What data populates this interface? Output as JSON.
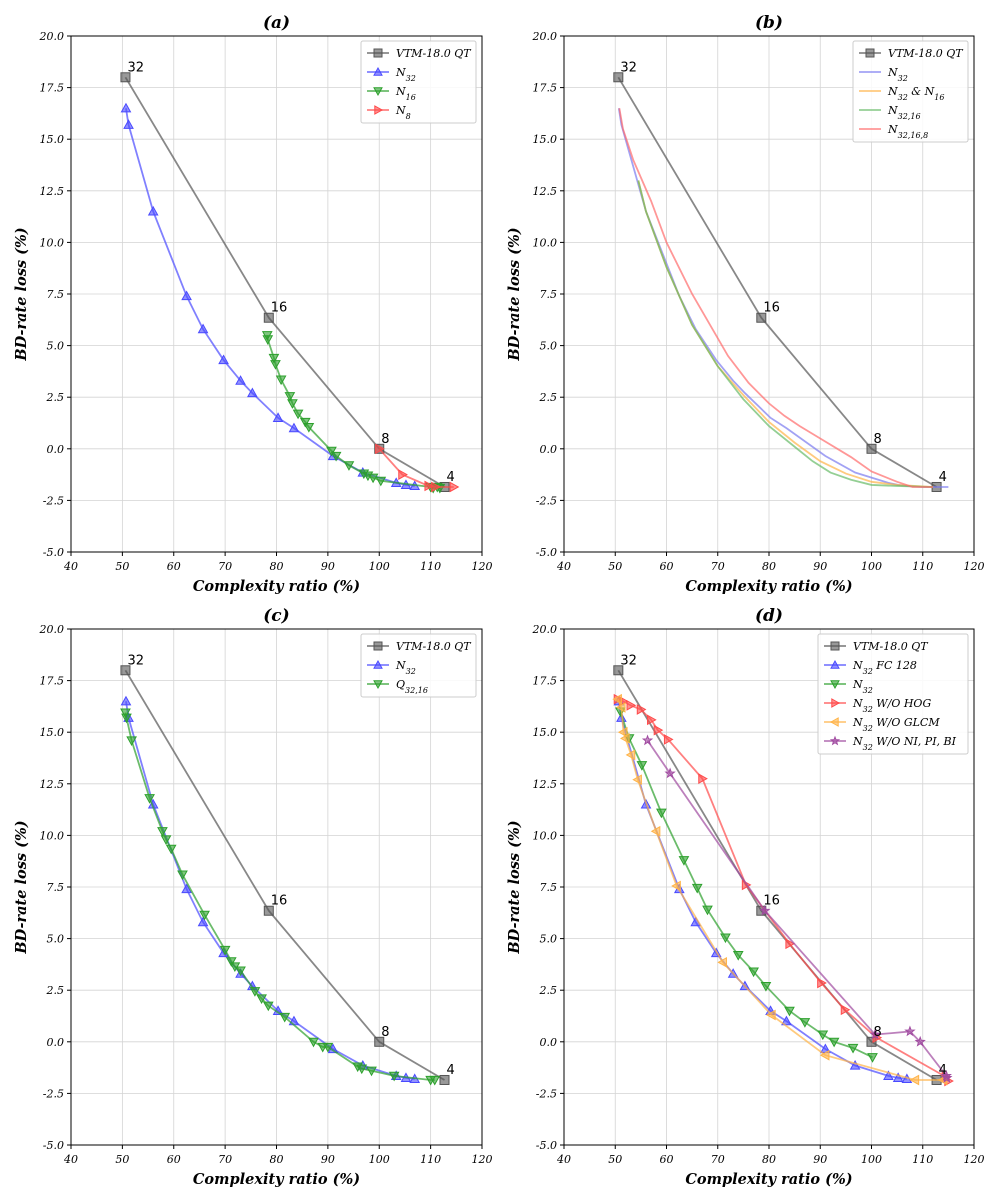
{
  "chart_data": [
    {
      "type": "line",
      "panel": "(a)",
      "title": "(a)",
      "xlabel": "Complexity ratio (%)",
      "ylabel": "BD-rate loss (%)",
      "xlim": [
        40,
        120
      ],
      "ylim": [
        -5.0,
        20.0
      ],
      "xticks": [
        "40",
        "50",
        "60",
        "70",
        "80",
        "90",
        "100",
        "110",
        "120"
      ],
      "yticks": [
        "-5.0",
        "-2.5",
        "0.0",
        "2.5",
        "5.0",
        "7.5",
        "10.0",
        "12.5",
        "15.0",
        "17.5",
        "20.0"
      ],
      "legend": "top-right",
      "series": [
        {
          "name": "VTM-18.0 QT",
          "color": "#555555",
          "marker": "square",
          "line": true,
          "mark_all": true,
          "x": [
            50.6,
            78.5,
            100.0,
            112.7
          ],
          "y": [
            18.0,
            6.35,
            0.0,
            -1.85
          ]
        },
        {
          "name": "N32",
          "sub": "32",
          "color": "#4a4aff",
          "marker": "triangle-up",
          "line": true,
          "mark_all": true,
          "x": [
            50.7,
            51.2,
            56.0,
            62.5,
            65.7,
            69.7,
            73.0,
            75.3,
            80.3,
            83.4,
            91.0,
            96.8,
            103.3,
            105.2,
            106.9
          ],
          "y": [
            16.5,
            15.7,
            11.5,
            7.4,
            5.8,
            4.3,
            3.3,
            2.7,
            1.5,
            1.0,
            -0.35,
            -1.15,
            -1.65,
            -1.75,
            -1.8
          ]
        },
        {
          "name": "N16",
          "sub": "16",
          "color": "#2ca02c",
          "marker": "triangle-down",
          "line": true,
          "mark_all": true,
          "x": [
            78.2,
            78.3,
            79.5,
            79.8,
            80.9,
            82.6,
            83.1,
            84.2,
            85.6,
            86.3,
            90.7,
            91.6,
            94.1,
            97.0,
            97.8,
            98.8,
            100.3,
            110.0,
            110.5,
            111.3,
            111.8
          ],
          "y": [
            5.5,
            5.3,
            4.4,
            4.1,
            3.35,
            2.55,
            2.2,
            1.7,
            1.3,
            1.05,
            -0.1,
            -0.35,
            -0.8,
            -1.2,
            -1.3,
            -1.4,
            -1.55,
            -1.85,
            -1.9,
            -1.85,
            -1.9
          ]
        },
        {
          "name": "N8",
          "sub": "8",
          "color": "#ff4a4a",
          "marker": "triangle-right",
          "line": true,
          "mark_all": true,
          "x": [
            100.0,
            104.5,
            109.6,
            110.9,
            114.5
          ],
          "y": [
            0.0,
            -1.25,
            -1.8,
            -1.85,
            -1.85
          ]
        }
      ],
      "annotations": [
        {
          "text": "32",
          "x": 50.6,
          "y": 18.0
        },
        {
          "text": "16",
          "x": 78.5,
          "y": 6.35
        },
        {
          "text": "8",
          "x": 100.0,
          "y": 0.0
        },
        {
          "text": "4",
          "x": 112.7,
          "y": -1.85
        }
      ]
    },
    {
      "type": "line",
      "panel": "(b)",
      "title": "(b)",
      "xlabel": "Complexity ratio (%)",
      "ylabel": "BD-rate loss (%)",
      "xlim": [
        40,
        120
      ],
      "ylim": [
        -5.0,
        20.0
      ],
      "xticks": [
        "40",
        "50",
        "60",
        "70",
        "80",
        "90",
        "100",
        "110",
        "120"
      ],
      "yticks": [
        "-5.0",
        "-2.5",
        "0.0",
        "2.5",
        "5.0",
        "7.5",
        "10.0",
        "12.5",
        "15.0",
        "17.5",
        "20.0"
      ],
      "legend": "top-right",
      "series": [
        {
          "name": "VTM-18.0 QT",
          "color": "#555555",
          "marker": "square",
          "line": true,
          "mark_all": true,
          "x": [
            50.6,
            78.5,
            100.0,
            112.7
          ],
          "y": [
            18.0,
            6.35,
            0.0,
            -1.85
          ]
        },
        {
          "name": "N32",
          "sub": "32",
          "color": "#7b7bf0",
          "marker": "none",
          "line": true,
          "x": [
            50.7,
            51.2,
            56.0,
            62.5,
            65.7,
            69.7,
            73.0,
            75.3,
            80.3,
            83.4,
            91.0,
            96.8,
            103.3,
            105.2,
            106.9,
            110.0,
            113.0,
            115.0
          ],
          "y": [
            16.5,
            15.7,
            11.5,
            7.4,
            5.8,
            4.3,
            3.3,
            2.7,
            1.5,
            1.0,
            -0.35,
            -1.15,
            -1.65,
            -1.75,
            -1.8,
            -1.85,
            -1.85,
            -1.85
          ]
        },
        {
          "name": "N32 & N16",
          "sub": "32",
          "sub2": "16",
          "color": "#ffb347",
          "marker": "none",
          "line": true,
          "x": [
            54.5,
            56.0,
            60.0,
            65.0,
            70.0,
            75.0,
            80.0,
            85.0,
            90.0,
            95.0,
            100.0,
            105.0,
            112.0
          ],
          "y": [
            13.0,
            11.5,
            8.8,
            6.0,
            4.0,
            2.6,
            1.3,
            0.3,
            -0.6,
            -1.2,
            -1.6,
            -1.75,
            -1.85
          ]
        },
        {
          "name": "N32,16",
          "sub": "32,16",
          "color": "#66bb66",
          "marker": "none",
          "line": true,
          "x": [
            54.5,
            56.0,
            60.0,
            65.0,
            70.0,
            75.0,
            80.0,
            85.0,
            88.5,
            92.0,
            96.0,
            100.0,
            105.0,
            112.0
          ],
          "y": [
            13.0,
            11.5,
            8.8,
            6.0,
            4.0,
            2.4,
            1.1,
            0.1,
            -0.6,
            -1.15,
            -1.5,
            -1.75,
            -1.8,
            -1.85
          ]
        },
        {
          "name": "N32,16,8",
          "sub": "32,16,8",
          "color": "#ff6b6b",
          "marker": "none",
          "line": true,
          "x": [
            50.8,
            51.5,
            53.5,
            57.0,
            60.0,
            65.0,
            72.0,
            76.0,
            80.0,
            83.0,
            86.0,
            90.0,
            96.0,
            100.0,
            105.0,
            108.0,
            112.0
          ],
          "y": [
            16.5,
            15.5,
            14.0,
            12.0,
            10.0,
            7.5,
            4.5,
            3.2,
            2.2,
            1.6,
            1.1,
            0.5,
            -0.4,
            -1.1,
            -1.6,
            -1.85,
            -1.85
          ]
        }
      ],
      "annotations": [
        {
          "text": "32",
          "x": 50.6,
          "y": 18.0
        },
        {
          "text": "16",
          "x": 78.5,
          "y": 6.35
        },
        {
          "text": "8",
          "x": 100.0,
          "y": 0.0
        },
        {
          "text": "4",
          "x": 112.7,
          "y": -1.85
        }
      ]
    },
    {
      "type": "line",
      "panel": "(c)",
      "title": "(c)",
      "xlabel": "Complexity ratio (%)",
      "ylabel": "BD-rate loss (%)",
      "xlim": [
        40,
        120
      ],
      "ylim": [
        -5.0,
        20.0
      ],
      "xticks": [
        "40",
        "50",
        "60",
        "70",
        "80",
        "90",
        "100",
        "110",
        "120"
      ],
      "yticks": [
        "-5.0",
        "-2.5",
        "0.0",
        "2.5",
        "5.0",
        "7.5",
        "10.0",
        "12.5",
        "15.0",
        "17.5",
        "20.0"
      ],
      "legend": "top-right",
      "series": [
        {
          "name": "VTM-18.0 QT",
          "color": "#555555",
          "marker": "square",
          "line": true,
          "mark_all": true,
          "x": [
            50.6,
            78.5,
            100.0,
            112.7
          ],
          "y": [
            18.0,
            6.35,
            0.0,
            -1.85
          ]
        },
        {
          "name": "N32",
          "sub": "32",
          "color": "#4a4aff",
          "marker": "triangle-up",
          "line": true,
          "mark_all": true,
          "x": [
            50.7,
            51.2,
            56.0,
            62.5,
            65.7,
            69.7,
            73.0,
            75.3,
            80.3,
            83.4,
            91.0,
            96.8,
            103.3,
            105.2,
            106.9
          ],
          "y": [
            16.5,
            15.7,
            11.5,
            7.4,
            5.8,
            4.3,
            3.3,
            2.7,
            1.5,
            1.0,
            -0.35,
            -1.15,
            -1.65,
            -1.75,
            -1.8
          ]
        },
        {
          "name": "Q32,16",
          "sub": "32,16",
          "prefix": "Q",
          "color": "#2ca02c",
          "marker": "triangle-down",
          "line": true,
          "mark_all": true,
          "x": [
            50.6,
            50.8,
            51.8,
            55.3,
            57.8,
            58.5,
            59.5,
            61.7,
            66.0,
            70.0,
            71.2,
            71.9,
            73.0,
            75.8,
            77.1,
            78.4,
            81.6,
            87.2,
            89.0,
            90.0,
            95.8,
            96.6,
            98.5,
            102.9,
            110.0,
            110.8
          ],
          "y": [
            15.95,
            15.7,
            14.6,
            11.8,
            10.2,
            9.8,
            9.35,
            8.1,
            6.15,
            4.45,
            3.9,
            3.65,
            3.45,
            2.45,
            2.1,
            1.75,
            1.2,
            0.0,
            -0.25,
            -0.25,
            -1.2,
            -1.3,
            -1.4,
            -1.65,
            -1.85,
            -1.85
          ]
        }
      ],
      "annotations": [
        {
          "text": "32",
          "x": 50.6,
          "y": 18.0
        },
        {
          "text": "16",
          "x": 78.5,
          "y": 6.35
        },
        {
          "text": "8",
          "x": 100.0,
          "y": 0.0
        },
        {
          "text": "4",
          "x": 112.7,
          "y": -1.85
        }
      ]
    },
    {
      "type": "line",
      "panel": "(d)",
      "title": "(d)",
      "xlabel": "Complexity ratio (%)",
      "ylabel": "BD-rate loss (%)",
      "xlim": [
        40,
        120
      ],
      "ylim": [
        -5.0,
        20.0
      ],
      "xticks": [
        "40",
        "50",
        "60",
        "70",
        "80",
        "90",
        "100",
        "110",
        "120"
      ],
      "yticks": [
        "-5.0",
        "-2.5",
        "0.0",
        "2.5",
        "5.0",
        "7.5",
        "10.0",
        "12.5",
        "15.0",
        "17.5",
        "20.0"
      ],
      "legend": "top-right",
      "series": [
        {
          "name": "VTM-18.0 QT",
          "color": "#555555",
          "marker": "square",
          "line": true,
          "mark_all": true,
          "x": [
            50.6,
            78.5,
            100.0,
            112.7
          ],
          "y": [
            18.0,
            6.35,
            0.0,
            -1.85
          ]
        },
        {
          "name": "N32 FC 128",
          "sub": "32",
          "suffix": " FC 128",
          "color": "#4a4aff",
          "marker": "triangle-up",
          "line": true,
          "mark_all": true,
          "x": [
            50.7,
            51.2,
            56.0,
            62.5,
            65.7,
            69.7,
            73.0,
            75.3,
            80.3,
            83.4,
            91.0,
            96.8,
            103.3,
            105.2,
            106.9
          ],
          "y": [
            16.5,
            15.7,
            11.5,
            7.4,
            5.8,
            4.3,
            3.3,
            2.7,
            1.5,
            1.0,
            -0.35,
            -1.15,
            -1.65,
            -1.75,
            -1.8
          ]
        },
        {
          "name": "N32",
          "sub": "32",
          "color": "#2ca02c",
          "marker": "triangle-down",
          "line": true,
          "mark_all": true,
          "x": [
            51.0,
            52.7,
            55.2,
            59.0,
            63.4,
            66.0,
            68.0,
            71.5,
            74.0,
            77.0,
            79.4,
            84.0,
            87.0,
            90.5,
            92.7,
            96.4,
            100.2
          ],
          "y": [
            16.0,
            14.7,
            13.4,
            11.1,
            8.8,
            7.45,
            6.4,
            5.05,
            4.2,
            3.4,
            2.7,
            1.5,
            0.95,
            0.35,
            0.0,
            -0.3,
            -0.75
          ]
        },
        {
          "name": "N32 W/O HOG",
          "sub": "32",
          "suffix": " W/O HOG",
          "color": "#ff4a4a",
          "marker": "triangle-right",
          "line": true,
          "mark_all": true,
          "x": [
            50.5,
            51.5,
            53.0,
            55.0,
            57.0,
            58.3,
            60.3,
            67.0,
            75.5,
            84.0,
            90.2,
            94.8,
            101.0,
            114.5,
            115.0
          ],
          "y": [
            16.6,
            16.5,
            16.3,
            16.1,
            15.6,
            15.1,
            14.65,
            12.75,
            7.6,
            4.75,
            2.85,
            1.55,
            0.2,
            -1.7,
            -1.9
          ]
        },
        {
          "name": "N32 W/O GLCM",
          "sub": "32",
          "suffix": " W/O GLCM",
          "color": "#ffb347",
          "marker": "triangle-left",
          "line": true,
          "mark_all": true,
          "x": [
            50.5,
            51.2,
            51.6,
            52.0,
            53.1,
            54.4,
            58.0,
            62.0,
            71.0,
            80.5,
            91.0,
            108.5,
            114.0
          ],
          "y": [
            16.6,
            16.2,
            15.0,
            14.7,
            13.9,
            12.7,
            10.2,
            7.55,
            3.85,
            1.3,
            -0.65,
            -1.85,
            -1.85
          ]
        },
        {
          "name": "N32 W/O NI, PI, BI",
          "sub": "32",
          "suffix": " W/O NI, PI, BI",
          "color": "#a04aa0",
          "marker": "star",
          "line": true,
          "mark_all": true,
          "x": [
            56.3,
            60.7,
            79.2,
            100.7,
            107.5,
            109.5,
            114.6,
            114.7
          ],
          "y": [
            14.6,
            13.0,
            6.35,
            0.35,
            0.5,
            0.0,
            -1.65,
            -1.75
          ]
        }
      ],
      "annotations": [
        {
          "text": "32",
          "x": 50.6,
          "y": 18.0
        },
        {
          "text": "16",
          "x": 78.5,
          "y": 6.35
        },
        {
          "text": "8",
          "x": 100.0,
          "y": 0.0
        },
        {
          "text": "4",
          "x": 112.7,
          "y": -1.85
        }
      ]
    }
  ]
}
